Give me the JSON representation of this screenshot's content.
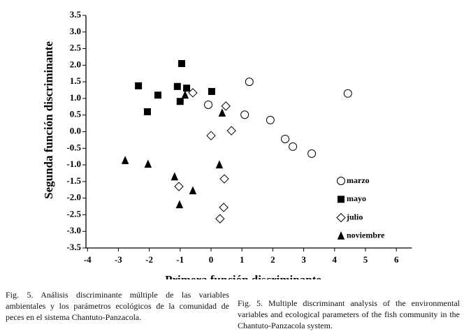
{
  "chart_data": {
    "type": "scatter",
    "x_label": "Primera función discriminante",
    "y_label": "Segunda función discriminante",
    "xlim": [
      -4,
      6.5
    ],
    "ylim": [
      -3.5,
      3.5
    ],
    "xticks": [
      -4,
      -3,
      -2,
      -1,
      0,
      1,
      2,
      3,
      4,
      5,
      6
    ],
    "yticks": [
      3.5,
      {
        "value": 3,
        "label": "3.0"
      },
      2.5,
      {
        "value": 2,
        "label": "2.0"
      },
      1.5,
      {
        "value": 1,
        "label": "1.0"
      },
      0.5,
      {
        "value": 0,
        "label": "0.0"
      },
      -0.5,
      {
        "value": -1,
        "label": "-1.0"
      },
      -1.5,
      {
        "value": -2,
        "label": "-2.0"
      },
      -2.5,
      {
        "value": -3,
        "label": "-3.0"
      },
      -3.5
    ],
    "legend_position": "lower right",
    "series": [
      {
        "name": "marzo",
        "color": "#000000",
        "marker": "circle-open",
        "x": [
          1.24,
          4.43,
          -0.09,
          1.09,
          1.92,
          2.4,
          2.65,
          3.26
        ],
        "values": [
          1.5,
          1.15,
          0.81,
          0.51,
          0.35,
          -0.22,
          -0.45,
          -0.66
        ]
      },
      {
        "name": "mayo",
        "color": "#000000",
        "marker": "square",
        "x": [
          -2.35,
          -1.72,
          -2.06,
          -0.95,
          -1.09,
          -0.79,
          -1.0,
          0.02
        ],
        "values": [
          1.38,
          1.1,
          0.6,
          2.05,
          1.36,
          1.31,
          0.91,
          1.21
        ]
      },
      {
        "name": "julio",
        "color": "#000000",
        "marker": "diamond-open",
        "x": [
          -0.59,
          0.48,
          0.66,
          0,
          -1.04,
          0.43,
          0.41,
          0.29
        ],
        "values": [
          1.17,
          0.77,
          0.03,
          -0.12,
          -1.65,
          -1.42,
          -2.28,
          -2.62
        ]
      },
      {
        "name": "noviembre",
        "color": "#000000",
        "marker": "triangle",
        "x": [
          -2.78,
          -2.04,
          -1.18,
          -1.02,
          -0.59,
          0.27,
          0.36,
          -0.84
        ],
        "values": [
          -0.87,
          -0.98,
          -1.36,
          -2.2,
          -1.78,
          -1.0,
          0.56,
          1.1
        ]
      }
    ]
  },
  "captions": {
    "spanish": "Fig. 5. Análisis discriminante múltiple de las variables ambientales y los parámetros ecológicos de la comunidad de peces en el sistema Chantuto-Panzacola.",
    "english": "Fig. 5. Multiple discriminant analysis of the environmental variables and ecological parameters of the fish community in the Chantuto-Panzacola system."
  }
}
